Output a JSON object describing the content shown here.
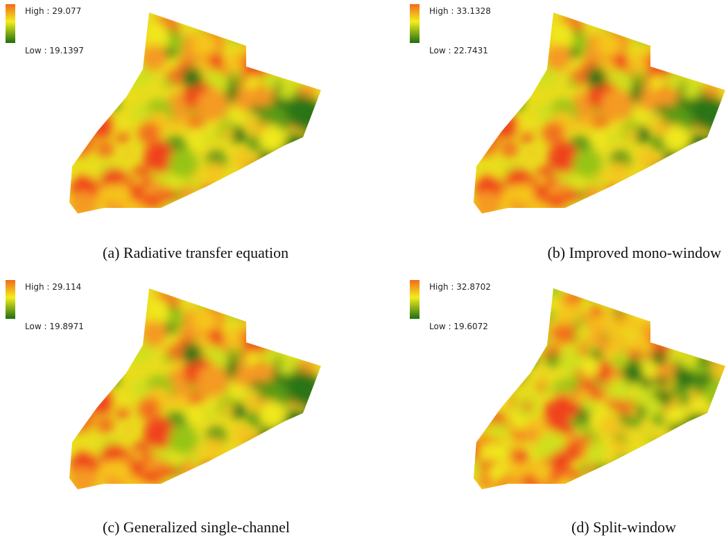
{
  "panels": [
    {
      "legend_high": "High : 29.077",
      "legend_low": "Low : 19.1397",
      "caption": "(a) Radiative transfer equation"
    },
    {
      "legend_high": "High : 33.1328",
      "legend_low": "Low : 22.7431",
      "caption": "(b) Improved mono-window"
    },
    {
      "legend_high": "High : 29.114",
      "legend_low": "Low : 19.8971",
      "caption": "(c) Generalized single-channel"
    },
    {
      "legend_high": "High : 32.8702",
      "legend_low": "Low : 19.6072",
      "caption": "(d) Split-window"
    }
  ]
}
